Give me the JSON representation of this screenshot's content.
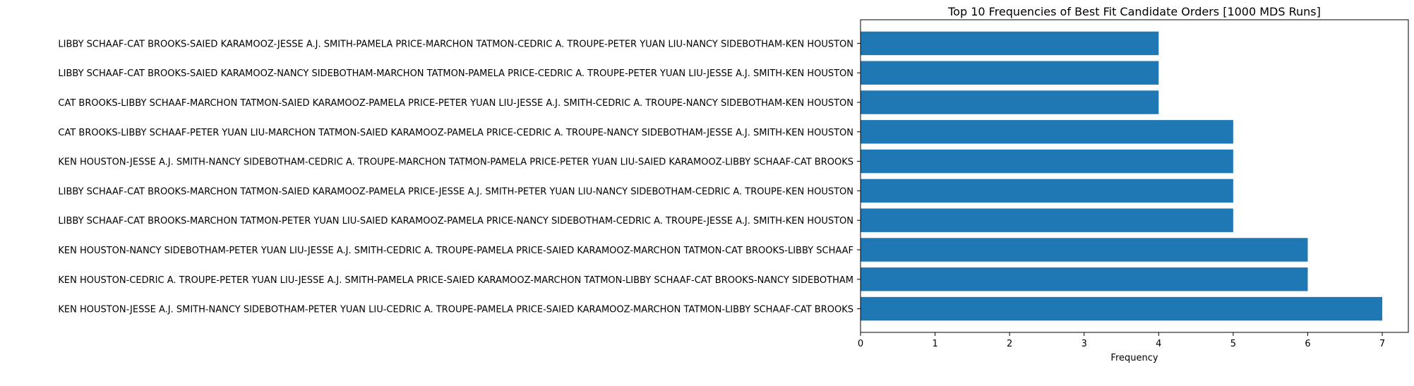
{
  "chart_data": {
    "type": "bar",
    "orientation": "horizontal",
    "title": "Top 10 Frequencies of Best Fit Candidate Orders [1000 MDS Runs]",
    "xlabel": "Frequency",
    "ylabel": "",
    "xlim": [
      0,
      7.35
    ],
    "xticks": [
      0,
      1,
      2,
      3,
      4,
      5,
      6,
      7
    ],
    "grid": false,
    "legend": "none",
    "bar_color": "#1f77b4",
    "categories": [
      "LIBBY SCHAAF-CAT BROOKS-SAIED KARAMOOZ-JESSE A.J. SMITH-PAMELA PRICE-MARCHON TATMON-CEDRIC A. TROUPE-PETER YUAN LIU-NANCY SIDEBOTHAM-KEN HOUSTON",
      "LIBBY SCHAAF-CAT BROOKS-SAIED KARAMOOZ-NANCY SIDEBOTHAM-MARCHON TATMON-PAMELA PRICE-CEDRIC A. TROUPE-PETER YUAN LIU-JESSE A.J. SMITH-KEN HOUSTON",
      "CAT BROOKS-LIBBY SCHAAF-MARCHON TATMON-SAIED KARAMOOZ-PAMELA PRICE-PETER YUAN LIU-JESSE A.J. SMITH-CEDRIC A. TROUPE-NANCY SIDEBOTHAM-KEN HOUSTON",
      "CAT BROOKS-LIBBY SCHAAF-PETER YUAN LIU-MARCHON TATMON-SAIED KARAMOOZ-PAMELA PRICE-CEDRIC A. TROUPE-NANCY SIDEBOTHAM-JESSE A.J. SMITH-KEN HOUSTON",
      "KEN HOUSTON-JESSE A.J. SMITH-NANCY SIDEBOTHAM-CEDRIC A. TROUPE-MARCHON TATMON-PAMELA PRICE-PETER YUAN LIU-SAIED KARAMOOZ-LIBBY SCHAAF-CAT BROOKS",
      "LIBBY SCHAAF-CAT BROOKS-MARCHON TATMON-SAIED KARAMOOZ-PAMELA PRICE-JESSE A.J. SMITH-PETER YUAN LIU-NANCY SIDEBOTHAM-CEDRIC A. TROUPE-KEN HOUSTON",
      "LIBBY SCHAAF-CAT BROOKS-MARCHON TATMON-PETER YUAN LIU-SAIED KARAMOOZ-PAMELA PRICE-NANCY SIDEBOTHAM-CEDRIC A. TROUPE-JESSE A.J. SMITH-KEN HOUSTON",
      "KEN HOUSTON-NANCY SIDEBOTHAM-PETER YUAN LIU-JESSE A.J. SMITH-CEDRIC A. TROUPE-PAMELA PRICE-SAIED KARAMOOZ-MARCHON TATMON-CAT BROOKS-LIBBY SCHAAF",
      "KEN HOUSTON-CEDRIC A. TROUPE-PETER YUAN LIU-JESSE A.J. SMITH-PAMELA PRICE-SAIED KARAMOOZ-MARCHON TATMON-LIBBY SCHAAF-CAT BROOKS-NANCY SIDEBOTHAM",
      "KEN HOUSTON-JESSE A.J. SMITH-NANCY SIDEBOTHAM-PETER YUAN LIU-CEDRIC A. TROUPE-PAMELA PRICE-SAIED KARAMOOZ-MARCHON TATMON-LIBBY SCHAAF-CAT BROOKS"
    ],
    "values": [
      4,
      4,
      4,
      5,
      5,
      5,
      5,
      6,
      6,
      7
    ]
  }
}
